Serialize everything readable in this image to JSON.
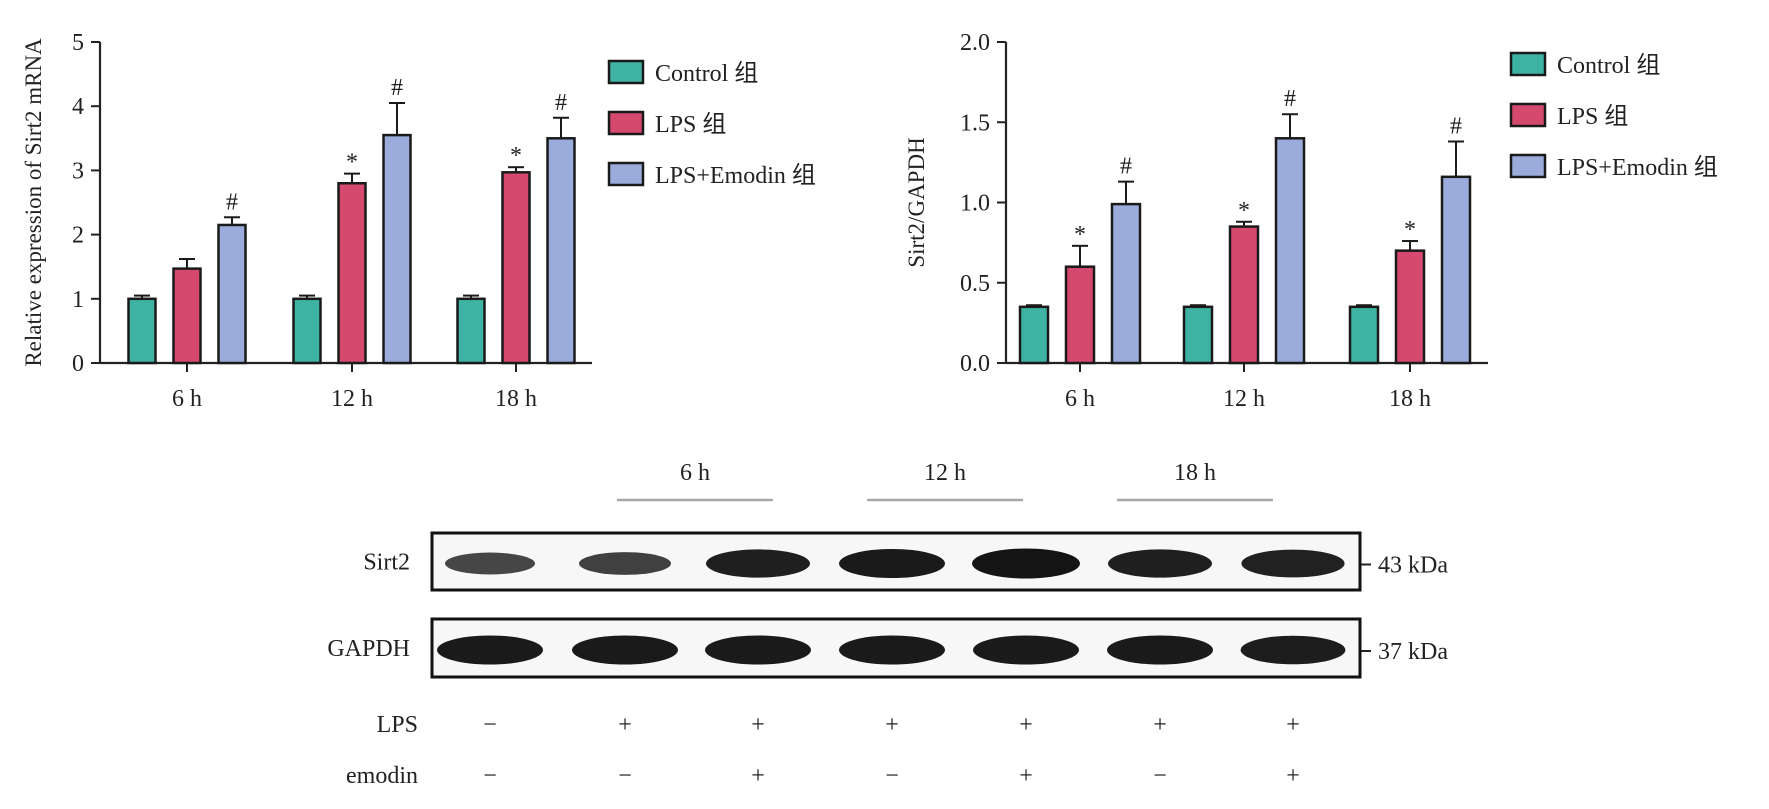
{
  "colors": {
    "control": "#3fb3a3",
    "lps": "#d6496f",
    "lps_emodin": "#9bacdc"
  },
  "chart_data": [
    {
      "type": "bar",
      "categories": [
        "6 h",
        "12 h",
        "18 h"
      ],
      "ylabel": "Relative expression of Sirt2 mRNA",
      "ylim": [
        0,
        5
      ],
      "yticks": [
        "0",
        "1",
        "2",
        "3",
        "4",
        "5"
      ],
      "series": [
        {
          "name": "Control 组",
          "values": [
            1.0,
            1.0,
            1.0
          ],
          "errors": [
            0.05,
            0.05,
            0.05
          ],
          "marks": [
            "",
            "",
            ""
          ]
        },
        {
          "name": "LPS 组",
          "values": [
            1.47,
            2.8,
            2.97
          ],
          "errors": [
            0.15,
            0.15,
            0.08
          ],
          "marks": [
            "",
            "*",
            "*"
          ]
        },
        {
          "name": "LPS+Emodin 组",
          "values": [
            2.15,
            3.55,
            3.5
          ],
          "errors": [
            0.12,
            0.5,
            0.32
          ],
          "marks": [
            "#",
            "#",
            "#"
          ]
        }
      ],
      "legend_position": "right"
    },
    {
      "type": "bar",
      "categories": [
        "6 h",
        "12 h",
        "18 h"
      ],
      "ylabel": "Sirt2/GAPDH",
      "ylim": [
        0,
        2.0
      ],
      "yticks": [
        "0.0",
        "0.5",
        "1.0",
        "1.5",
        "2.0"
      ],
      "series": [
        {
          "name": "Control 组",
          "values": [
            0.35,
            0.35,
            0.35
          ],
          "errors": [
            0.01,
            0.01,
            0.01
          ],
          "marks": [
            "",
            "",
            ""
          ]
        },
        {
          "name": "LPS 组",
          "values": [
            0.6,
            0.85,
            0.7
          ],
          "errors": [
            0.13,
            0.03,
            0.06
          ],
          "marks": [
            "*",
            "*",
            "*"
          ]
        },
        {
          "name": "LPS+Emodin 组",
          "values": [
            0.99,
            1.4,
            1.16
          ],
          "errors": [
            0.14,
            0.15,
            0.22
          ],
          "marks": [
            "#",
            "#",
            "#"
          ]
        }
      ],
      "legend_position": "right"
    }
  ],
  "blot": {
    "groups": [
      "6 h",
      "12 h",
      "18 h"
    ],
    "rows": [
      {
        "label": "Sirt2",
        "size": "43 kDa",
        "intensity": [
          0.55,
          0.6,
          0.9,
          0.95,
          1.0,
          0.9,
          0.88
        ]
      },
      {
        "label": "GAPDH",
        "size": "37 kDa",
        "intensity": [
          0.95,
          0.95,
          0.95,
          0.95,
          0.95,
          0.95,
          0.92
        ]
      }
    ],
    "treatments": [
      {
        "label": "LPS",
        "signs": [
          "−",
          "+",
          "+",
          "+",
          "+",
          "+",
          "+"
        ]
      },
      {
        "label": "emodin",
        "signs": [
          "−",
          "−",
          "+",
          "−",
          "+",
          "−",
          "+"
        ]
      }
    ]
  }
}
